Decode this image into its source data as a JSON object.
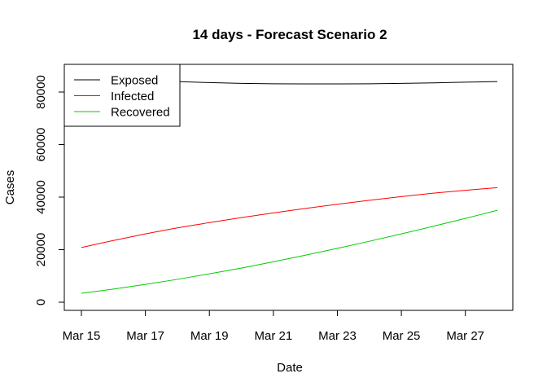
{
  "chart_data": {
    "type": "line",
    "title": "14 days - Forecast Scenario 2",
    "xlabel": "Date",
    "ylabel": "Cases",
    "x": [
      "Mar 15",
      "Mar 16",
      "Mar 17",
      "Mar 18",
      "Mar 19",
      "Mar 20",
      "Mar 21",
      "Mar 22",
      "Mar 23",
      "Mar 24",
      "Mar 25",
      "Mar 26",
      "Mar 27",
      "Mar 28"
    ],
    "x_tick_labels": [
      "Mar 15",
      "Mar 17",
      "Mar 19",
      "Mar 21",
      "Mar 23",
      "Mar 25",
      "Mar 27"
    ],
    "y_tick_labels": [
      "0",
      "20000",
      "40000",
      "60000",
      "80000"
    ],
    "ylim": [
      0,
      90000
    ],
    "grid": false,
    "legend": "top-left",
    "series": [
      {
        "name": "Exposed",
        "color": "#000000",
        "values": [
          86500,
          85400,
          84600,
          84000,
          83600,
          83300,
          83150,
          83100,
          83100,
          83150,
          83300,
          83500,
          83750,
          84000
        ]
      },
      {
        "name": "Infected",
        "color": "#ff0000",
        "values": [
          20800,
          23500,
          26000,
          28300,
          30300,
          32200,
          34000,
          35700,
          37300,
          38800,
          40200,
          41500,
          42600,
          43600
        ]
      },
      {
        "name": "Recovered",
        "color": "#00cd00",
        "values": [
          3400,
          5000,
          6800,
          8700,
          10800,
          13000,
          15400,
          17900,
          20500,
          23200,
          26000,
          28900,
          31900,
          35000
        ]
      }
    ]
  }
}
